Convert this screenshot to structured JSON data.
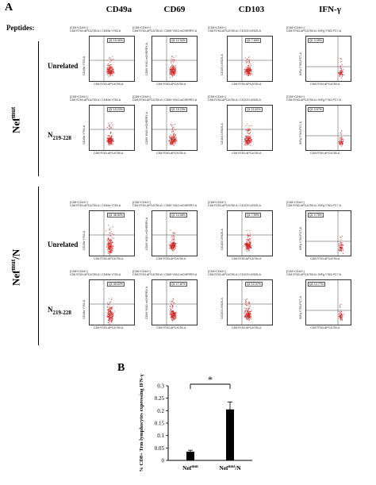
{
  "panel_a_letter": "A",
  "panel_b_letter": "B",
  "columns": [
    "CD49a",
    "CD69",
    "CD103",
    "IFN-γ"
  ],
  "peptides_label": "Peptides:",
  "groups": [
    {
      "name_base": "Nef",
      "name_sup": "mut",
      "name_tail": "",
      "rows": [
        "Unrelated",
        "N219-228"
      ]
    },
    {
      "name_base": "Nef",
      "name_sup": "mut",
      "name_tail": "/N",
      "rows": [
        "Unrelated",
        "N219-228"
      ]
    }
  ],
  "row_labels": [
    {
      "base": "Unrelated",
      "sub": ""
    },
    {
      "base": "N",
      "sub": "219-228"
    },
    {
      "base": "Unrelated",
      "sub": ""
    },
    {
      "base": "N",
      "sub": "219-228"
    }
  ],
  "plots": [
    {
      "gate": "[CD8+CD44+]",
      "title": "CD8 R763-APCA750-A / CD49a Y763-A",
      "ylabel": "CD49a Y763-A",
      "xlabel": "CD8 R763-APCA750-A",
      "pct": "15,49%"
    },
    {
      "gate": "[CD8+CD44+]",
      "title": "CD8 R763-APCA750-A / CD69 Y610-mCHERRY-A",
      "ylabel": "CD69 Y610-mCHERRY-A",
      "xlabel": "CD8 R763-APCA750-A",
      "pct": "12,02%"
    },
    {
      "gate": "[CD8+CD44+]",
      "title": "CD8 R763-APCA750-A / CD103 UV525-A",
      "ylabel": "CD103 UV525-A",
      "xlabel": "CD8 R763-APCA750-A",
      "pct": "7,69%"
    },
    {
      "gate": "[CD8+CD44+]",
      "title": "CD8 R763-APCA750-A / INFg Y763-PC7-A",
      "ylabel": "INFg Y763-PC7-A",
      "xlabel": "CD8 R763-APCA750-A",
      "pct": "0,35%"
    },
    {
      "gate": "[CD8+CD44+]",
      "title": "CD8 R763-APCA750-A / CD49a Y763-A",
      "ylabel": "CD49a Y763-A",
      "xlabel": "CD8 R763-APCA750-A",
      "pct": "15,23%"
    },
    {
      "gate": "[CD8+CD44+]",
      "title": "CD8 R763-APCA750-A / CD69 Y610-mCHERRY-A",
      "ylabel": "CD69 Y610-mCHERRY-A",
      "xlabel": "CD8 R763-APCA750-A",
      "pct": "15,23%"
    },
    {
      "gate": "[CD8+CD44+]",
      "title": "CD8 R763-APCA750-A / CD103 UV525-A",
      "ylabel": "CD103 UV525-A",
      "xlabel": "CD8 R763-APCA750-A",
      "pct": "11,62%"
    },
    {
      "gate": "[CD8+CD44+]",
      "title": "CD8 R763-APCA750-A / INFg Y763-PC7-A",
      "ylabel": "INFg Y763-PC7-A",
      "xlabel": "CD8 R763-APCA750-A",
      "pct": "3,57%"
    },
    {
      "gate": "[CD8+CD44+]",
      "title": "CD8 R763-APCA750-A / CD49a Y763-A",
      "ylabel": "CD49a Y763-A",
      "xlabel": "CD8 R763-APCA750-A",
      "pct": "46,50%"
    },
    {
      "gate": "[CD8+CD44+]",
      "title": "CD8 R763-APCA750-A / CD69 Y610-mCHERRY-A",
      "ylabel": "CD69 Y610-mCHERRY-A",
      "xlabel": "CD8 R763-APCA750-A",
      "pct": "14,06%"
    },
    {
      "gate": "[CD8+CD44+]",
      "title": "CD8 R763-APCA750-A / CD103 UV525-A",
      "ylabel": "CD103 UV525-A",
      "xlabel": "CD8 R763-APCA750-A",
      "pct": "7,59%"
    },
    {
      "gate": "[CD8+CD44+]",
      "title": "CD8 R763-APCA750-A / INFg Y763-PC7-A",
      "ylabel": "INFg Y763-PC7-A",
      "xlabel": "CD8 R763-APCA750-A",
      "pct": "0,75%"
    },
    {
      "gate": "[CD8+CD44+]",
      "title": "CD8 R763-APCA750-A / CD49a Y763-A",
      "ylabel": "CD49a Y763-A",
      "xlabel": "CD8 R763-APCA750-A",
      "pct": "49,02%"
    },
    {
      "gate": "[CD8+CD44+]",
      "title": "CD8 R763-APCA750-A / CD69 Y610-mCHERRY-A",
      "ylabel": "CD69 Y610-mCHERRY-A",
      "xlabel": "CD8 R763-APCA750-A",
      "pct": "17,87%"
    },
    {
      "gate": "[CD8+CD44+]",
      "title": "CD8 R763-APCA750-A / CD103 UV525-A",
      "ylabel": "CD103 UV525-A",
      "xlabel": "CD8 R763-APCA750-A",
      "pct": "12,37%"
    },
    {
      "gate": "[CD8+CD44+]",
      "title": "CD8 R763-APCA750-A / INFg Y763-PC7-A",
      "ylabel": "INFg Y763-PC7-A",
      "xlabel": "CD8 R763-APCA750-A",
      "pct": "12,77%"
    }
  ],
  "chart_data": {
    "type": "bar",
    "categories": [
      "Nefmut",
      "Nefmut/N"
    ],
    "category_labels": [
      {
        "base": "Nef",
        "sup": "mut",
        "tail": ""
      },
      {
        "base": "Nef",
        "sup": "mut",
        "tail": "/N"
      }
    ],
    "values": [
      0.035,
      0.205
    ],
    "errors": [
      0.006,
      0.03
    ],
    "ylabel": "% CD8+ Trm lymphocytes expressing IFN-γ",
    "ylim": [
      0,
      0.3
    ],
    "yticks": [
      "0",
      "0.05",
      "0.1",
      "0.15",
      "0.2",
      "0.25",
      "0.3"
    ],
    "significance": "*",
    "bar_color": "#000000"
  }
}
